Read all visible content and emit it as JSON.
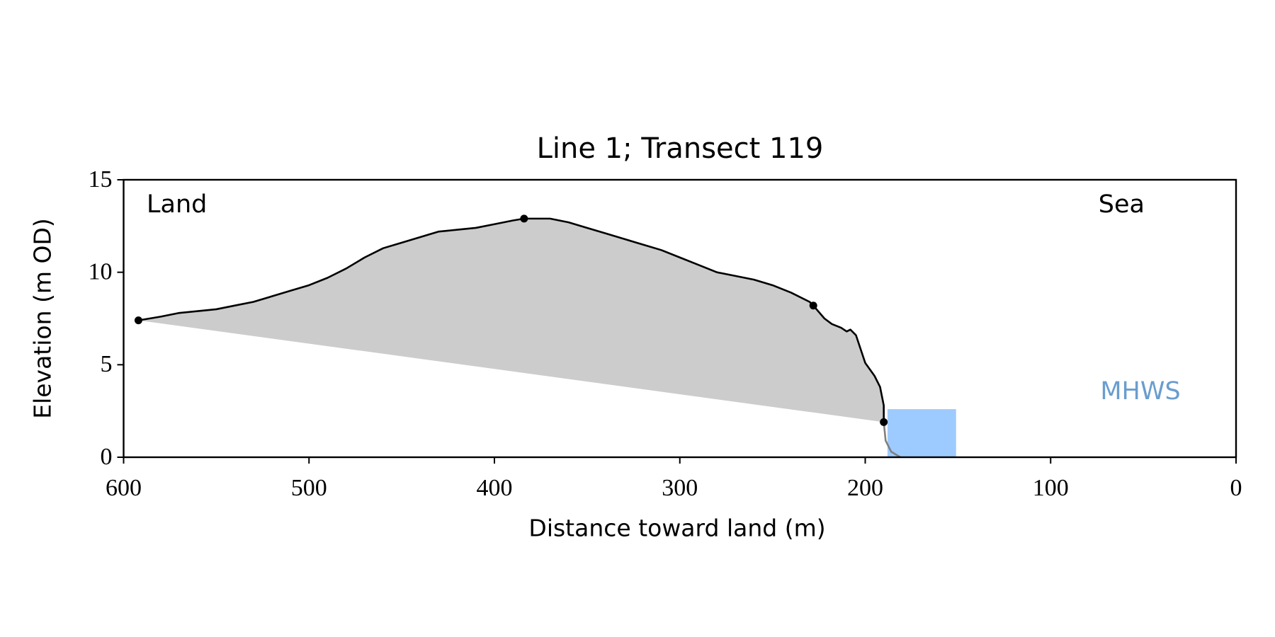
{
  "chart_data": {
    "type": "line",
    "title": "Line 1; Transect 119",
    "xlabel": "Distance toward land (m)",
    "ylabel": "Elevation (m OD)",
    "xlim": [
      600,
      0
    ],
    "ylim": [
      0,
      15
    ],
    "xticks": [
      600,
      500,
      400,
      300,
      200,
      100,
      0
    ],
    "yticks": [
      0,
      5,
      10,
      15
    ],
    "fill_color": "#cccccc",
    "profile": {
      "color": "#000000",
      "x": [
        592,
        580,
        570,
        560,
        550,
        540,
        530,
        520,
        510,
        500,
        490,
        480,
        470,
        460,
        450,
        440,
        430,
        420,
        410,
        400,
        390,
        384,
        370,
        360,
        350,
        340,
        330,
        320,
        310,
        300,
        290,
        280,
        270,
        260,
        250,
        240,
        230,
        228,
        222,
        218,
        213,
        210,
        208,
        205,
        200,
        195,
        192,
        190,
        190
      ],
      "values": [
        7.4,
        7.6,
        7.8,
        7.9,
        8.0,
        8.2,
        8.4,
        8.7,
        9.0,
        9.3,
        9.7,
        10.2,
        10.8,
        11.3,
        11.6,
        11.9,
        12.2,
        12.3,
        12.4,
        12.6,
        12.8,
        12.9,
        12.9,
        12.7,
        12.4,
        12.1,
        11.8,
        11.5,
        11.2,
        10.8,
        10.4,
        10.0,
        9.8,
        9.6,
        9.3,
        8.9,
        8.4,
        8.2,
        7.5,
        7.2,
        7.0,
        6.8,
        6.9,
        6.6,
        5.1,
        4.4,
        3.8,
        2.8,
        1.9
      ]
    },
    "toe": {
      "color": "#808080",
      "x": [
        190,
        189,
        186,
        181
      ],
      "values": [
        1.9,
        0.9,
        0.3,
        0
      ]
    },
    "markers": {
      "color": "#000000",
      "x": [
        592,
        384,
        228,
        190
      ],
      "values": [
        7.4,
        12.9,
        8.2,
        1.9
      ]
    },
    "mhws": {
      "label": "MHWS",
      "x": [
        188,
        151
      ],
      "top": 2.6,
      "color": "#9ecbff",
      "label_color": "#6a9dcf"
    },
    "annotations": [
      "Land",
      "Sea"
    ]
  }
}
